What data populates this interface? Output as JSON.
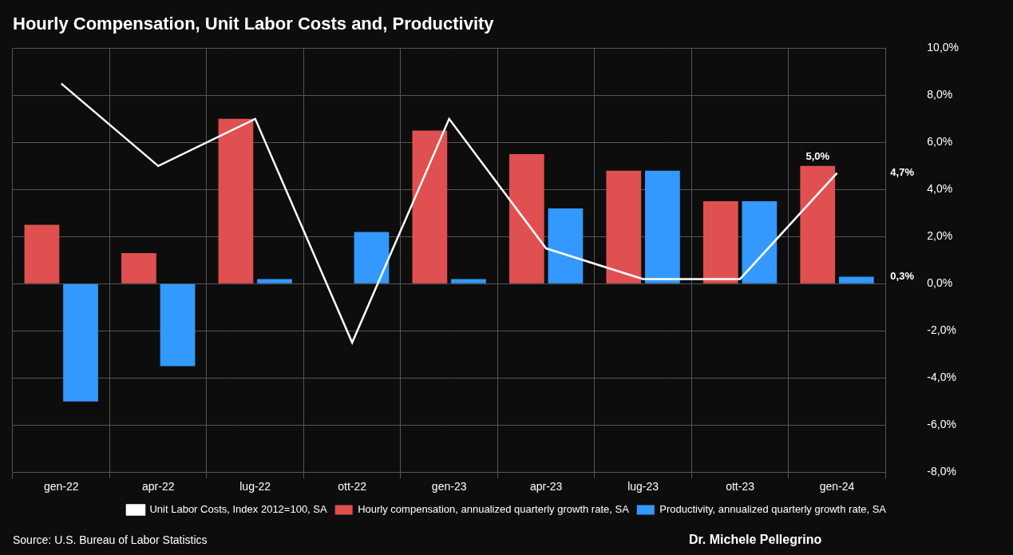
{
  "chart_data": {
    "type": "bar",
    "title": "Hourly Compensation, Unit Labor Costs and, Productivity",
    "categories": [
      "gen-22",
      "apr-22",
      "lug-22",
      "ott-22",
      "gen-23",
      "apr-23",
      "lug-23",
      "ott-23",
      "gen-24"
    ],
    "series": [
      {
        "name": "Hourly compensation, annualized quarterly growth rate, SA",
        "type": "bar",
        "color": "#e05050",
        "values": [
          2.5,
          1.3,
          7.0,
          0.0,
          6.5,
          5.5,
          4.8,
          3.5,
          5.0
        ]
      },
      {
        "name": "Productivity, annualized quarterly growth rate, SA",
        "type": "bar",
        "color": "#3399ff",
        "values": [
          -5.0,
          -3.5,
          0.2,
          2.2,
          0.2,
          3.2,
          4.8,
          3.5,
          0.3
        ]
      },
      {
        "name": "Unit Labor Costs, Index 2012=100, SA",
        "type": "line",
        "color": "#ffffff",
        "values": [
          8.5,
          5.0,
          7.0,
          -2.5,
          7.0,
          1.5,
          0.2,
          0.2,
          4.7
        ]
      }
    ],
    "ylim": [
      -8.0,
      10.0
    ],
    "yticks": [
      {
        "value": -8.0,
        "label": "-8,0%"
      },
      {
        "value": -6.0,
        "label": "-6,0%"
      },
      {
        "value": -4.0,
        "label": "-4,0%"
      },
      {
        "value": -2.0,
        "label": "-2,0%"
      },
      {
        "value": 0.0,
        "label": "0,0%"
      },
      {
        "value": 2.0,
        "label": "2,0%"
      },
      {
        "value": 4.0,
        "label": "4,0%"
      },
      {
        "value": 6.0,
        "label": "6,0%"
      },
      {
        "value": 8.0,
        "label": "8,0%"
      },
      {
        "value": 10.0,
        "label": "10,0%"
      }
    ],
    "annotations": [
      {
        "text": "5,0%",
        "series": "Hourly compensation, annualized quarterly growth rate, SA",
        "category": "gen-24",
        "value": 5.0
      },
      {
        "text": "4,7%",
        "series": "Unit Labor Costs, Index 2012=100, SA",
        "category": "gen-24",
        "value": 4.7
      },
      {
        "text": "0,3%",
        "series": "Productivity, annualized quarterly growth rate, SA",
        "category": "gen-24",
        "value": 0.3
      }
    ],
    "source": "Source: U.S. Bureau of Labor Statistics",
    "author": "Dr. Michele Pellegrino",
    "grid": true,
    "legend": "bottom"
  }
}
